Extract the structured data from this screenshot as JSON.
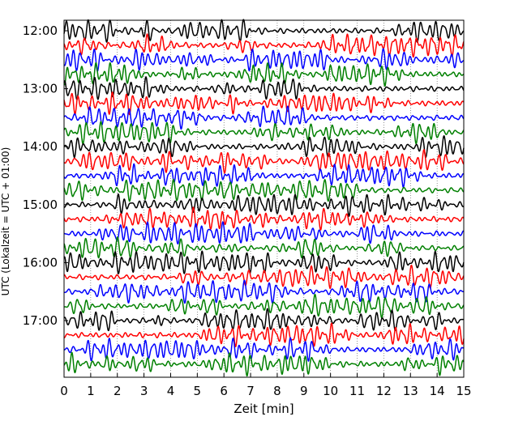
{
  "chart_data": {
    "type": "line",
    "title": "",
    "xlabel": "Zeit  [min]",
    "ylabel": "UTC (Lokalzeit = UTC + 01:00)",
    "xlim": [
      0,
      15
    ],
    "x_ticks": [
      0,
      1,
      2,
      3,
      4,
      5,
      6,
      7,
      8,
      9,
      10,
      11,
      12,
      13,
      14,
      15
    ],
    "x_tick_labels": [
      "0",
      "1",
      "2",
      "3",
      "4",
      "5",
      "6",
      "7",
      "8",
      "9",
      "10",
      "11",
      "12",
      "13",
      "14",
      "15"
    ],
    "y_tick_labels": [
      "12:00",
      "13:00",
      "14:00",
      "15:00",
      "16:00",
      "17:00"
    ],
    "grid": true,
    "grid_style": "dotted",
    "trace_minutes": 15,
    "trace_colors": [
      "#000000",
      "#ff0000",
      "#0000ff",
      "#008000"
    ],
    "traces": [
      {
        "start": "12:00"
      },
      {
        "start": "12:15"
      },
      {
        "start": "12:30"
      },
      {
        "start": "12:45"
      },
      {
        "start": "13:00"
      },
      {
        "start": "13:15"
      },
      {
        "start": "13:30"
      },
      {
        "start": "13:45"
      },
      {
        "start": "14:00"
      },
      {
        "start": "14:15"
      },
      {
        "start": "14:30"
      },
      {
        "start": "14:45"
      },
      {
        "start": "15:00"
      },
      {
        "start": "15:15"
      },
      {
        "start": "15:30"
      },
      {
        "start": "15:45"
      },
      {
        "start": "16:00"
      },
      {
        "start": "16:15"
      },
      {
        "start": "16:30"
      },
      {
        "start": "16:45"
      },
      {
        "start": "17:00"
      },
      {
        "start": "17:15"
      },
      {
        "start": "17:30"
      },
      {
        "start": "17:45"
      }
    ]
  }
}
